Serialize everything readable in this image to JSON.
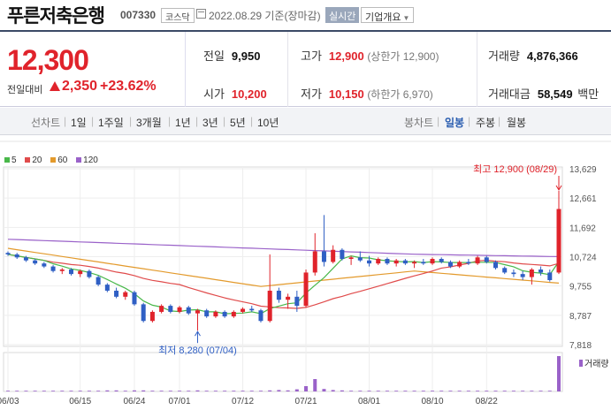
{
  "header": {
    "stock_name": "푸른저축은행",
    "stock_code": "007330",
    "market_badge": "코스닥",
    "date_text": "2022.08.29  기준(장마감)",
    "realtime_button": "실시간",
    "company_button": "기업개요"
  },
  "summary": {
    "price": "12,300",
    "change_label": "전일대비",
    "change": "2,350",
    "change_pct": "+23.62%",
    "prev_close_label": "전일",
    "prev_close": "9,950",
    "open_label": "시가",
    "open": "10,200",
    "high_label": "고가",
    "high": "12,900",
    "upper_limit": "(상한가 12,900)",
    "low_label": "저가",
    "low": "10,150",
    "lower_limit": "(하한가 6,970)",
    "volume_label": "거래량",
    "volume": "4,876,366",
    "amount_label": "거래대금",
    "amount": "58,549",
    "amount_unit": "백만"
  },
  "toolbar": {
    "line_chart_label": "선차트",
    "ranges": [
      "1일",
      "1주일",
      "3개월",
      "1년",
      "3년",
      "5년",
      "10년"
    ],
    "candle_label": "봉차트",
    "candle_periods": [
      "일봉",
      "주봉",
      "월봉"
    ],
    "active_candle_period": "일봉"
  },
  "colors": {
    "up": "#e0232b",
    "down": "#2f5fc4",
    "ma5": "#49b84a",
    "ma20": "#e04b4b",
    "ma60": "#e39a2c",
    "ma120": "#9a62c9"
  },
  "chart_data": {
    "type": "candlestick",
    "legend": [
      {
        "name": "5",
        "color": "#49b84a"
      },
      {
        "name": "20",
        "color": "#e04b4b"
      },
      {
        "name": "60",
        "color": "#e39a2c"
      },
      {
        "name": "120",
        "color": "#9a62c9"
      }
    ],
    "y_ticks": [
      13629,
      12661,
      11692,
      10724,
      9755,
      8787,
      7818
    ],
    "ylim": [
      7818,
      13629
    ],
    "x_ticks": [
      "06/03",
      "06/15",
      "06/24",
      "07/01",
      "07/12",
      "07/21",
      "08/01",
      "08/10",
      "08/22"
    ],
    "x_tick_index": [
      0,
      8,
      14,
      19,
      26,
      33,
      40,
      47,
      53
    ],
    "max_annotation": "최고 12,900 (08/29)",
    "min_annotation": "최저 8,280 (07/04)",
    "volume_label": "거래량",
    "candles": [
      [
        10850,
        10900,
        10750,
        10800
      ],
      [
        10800,
        10850,
        10650,
        10700
      ],
      [
        10700,
        10750,
        10550,
        10600
      ],
      [
        10600,
        10650,
        10450,
        10500
      ],
      [
        10500,
        10550,
        10350,
        10400
      ],
      [
        10400,
        10450,
        10200,
        10250
      ],
      [
        10250,
        10350,
        10150,
        10300
      ],
      [
        10300,
        10350,
        10100,
        10150
      ],
      [
        10150,
        10300,
        10050,
        10250
      ],
      [
        10250,
        10300,
        10000,
        10050
      ],
      [
        10050,
        10100,
        9750,
        9800
      ],
      [
        9800,
        9850,
        9550,
        9600
      ],
      [
        9600,
        9700,
        9350,
        9400
      ],
      [
        9400,
        9600,
        9300,
        9550
      ],
      [
        9550,
        9600,
        9100,
        9150
      ],
      [
        9150,
        9200,
        8550,
        8600
      ],
      [
        8600,
        8950,
        8550,
        8900
      ],
      [
        8900,
        9150,
        8850,
        9100
      ],
      [
        9100,
        9150,
        8850,
        8900
      ],
      [
        8900,
        9100,
        8850,
        9050
      ],
      [
        9050,
        9100,
        8800,
        8850
      ],
      [
        8850,
        9000,
        8280,
        8950
      ],
      [
        8950,
        9000,
        8700,
        8750
      ],
      [
        8750,
        8950,
        8700,
        8900
      ],
      [
        8900,
        8950,
        8700,
        8750
      ],
      [
        8750,
        8950,
        8700,
        8900
      ],
      [
        8900,
        9050,
        8850,
        9000
      ],
      [
        9000,
        9100,
        8900,
        8950
      ],
      [
        8950,
        9000,
        8550,
        8600
      ],
      [
        8600,
        10800,
        8550,
        9600
      ],
      [
        9600,
        9700,
        9200,
        9300
      ],
      [
        9300,
        9500,
        9000,
        9400
      ],
      [
        9400,
        9600,
        8900,
        9100
      ],
      [
        9100,
        10300,
        9050,
        10200
      ],
      [
        10200,
        11500,
        10100,
        10900
      ],
      [
        10900,
        12100,
        10400,
        10550
      ],
      [
        10550,
        11100,
        10500,
        10950
      ],
      [
        10950,
        11000,
        10600,
        10650
      ],
      [
        10650,
        10750,
        10450,
        10700
      ],
      [
        10700,
        10900,
        10550,
        10600
      ],
      [
        10600,
        10750,
        10400,
        10500
      ],
      [
        10500,
        10700,
        10450,
        10650
      ],
      [
        10650,
        10700,
        10450,
        10500
      ],
      [
        10500,
        10650,
        10400,
        10600
      ],
      [
        10600,
        10650,
        10450,
        10500
      ],
      [
        10500,
        10600,
        10350,
        10550
      ],
      [
        10550,
        10650,
        10450,
        10500
      ],
      [
        10500,
        10700,
        10450,
        10650
      ],
      [
        10650,
        10700,
        10500,
        10550
      ],
      [
        10550,
        10600,
        10350,
        10400
      ],
      [
        10400,
        10600,
        10350,
        10550
      ],
      [
        10550,
        10650,
        10450,
        10500
      ],
      [
        10500,
        10750,
        10450,
        10700
      ],
      [
        10700,
        10750,
        10500,
        10550
      ],
      [
        10550,
        10600,
        10300,
        10350
      ],
      [
        10350,
        10400,
        10150,
        10200
      ],
      [
        10200,
        10300,
        10050,
        10150
      ],
      [
        10150,
        10250,
        9950,
        10050
      ],
      [
        10050,
        10350,
        9800,
        10300
      ],
      [
        10300,
        10400,
        10100,
        10200
      ],
      [
        10200,
        10300,
        9900,
        9950
      ],
      [
        10200,
        12900,
        10150,
        12300
      ]
    ],
    "volumes": [
      2,
      2,
      2,
      2,
      2,
      2,
      2,
      2,
      2,
      2,
      2,
      3,
      3,
      2,
      3,
      3,
      2,
      2,
      2,
      2,
      2,
      3,
      2,
      2,
      2,
      2,
      2,
      2,
      2,
      3,
      4,
      3,
      6,
      15,
      35,
      7,
      4,
      3,
      2,
      2,
      2,
      2,
      2,
      2,
      2,
      2,
      2,
      2,
      2,
      2,
      2,
      2,
      2,
      2,
      2,
      2,
      2,
      2,
      2,
      2,
      2,
      100
    ]
  }
}
